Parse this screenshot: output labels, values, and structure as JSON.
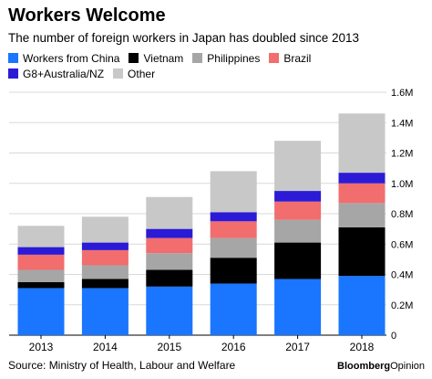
{
  "chart_data": {
    "type": "bar",
    "stacked": true,
    "title": "Workers Welcome",
    "subtitle": "The number of foreign workers in Japan has doubled since 2013",
    "categories": [
      "2013",
      "2014",
      "2015",
      "2016",
      "2017",
      "2018"
    ],
    "series": [
      {
        "name": "Workers from China",
        "color": "#1a75ff",
        "values": [
          0.31,
          0.31,
          0.32,
          0.34,
          0.37,
          0.39
        ]
      },
      {
        "name": "Vietnam",
        "color": "#000000",
        "values": [
          0.04,
          0.06,
          0.11,
          0.17,
          0.24,
          0.32
        ]
      },
      {
        "name": "Philippines",
        "color": "#a6a6a6",
        "values": [
          0.08,
          0.09,
          0.11,
          0.13,
          0.15,
          0.16
        ]
      },
      {
        "name": "Brazil",
        "color": "#f26d6d",
        "values": [
          0.1,
          0.1,
          0.1,
          0.11,
          0.12,
          0.13
        ]
      },
      {
        "name": "G8+Australia/NZ",
        "color": "#2b1bd6",
        "values": [
          0.05,
          0.05,
          0.06,
          0.06,
          0.07,
          0.07
        ]
      },
      {
        "name": "Other",
        "color": "#c8c8c8",
        "values": [
          0.14,
          0.17,
          0.21,
          0.27,
          0.33,
          0.39
        ]
      }
    ],
    "yticks": [
      0,
      0.2,
      0.4,
      0.6,
      0.8,
      1.0,
      1.2,
      1.4,
      1.6
    ],
    "ytick_labels": [
      "0",
      "0.2M",
      "0.4M",
      "0.6M",
      "0.8M",
      "1.0M",
      "1.2M",
      "1.4M",
      "1.6M"
    ],
    "ylim": [
      0,
      1.6
    ],
    "grid": true,
    "legend_position": "top",
    "xlabel": "",
    "ylabel": ""
  },
  "source": "Source: Ministry of Health, Labour and Welfare",
  "brand": {
    "part1": "Bloomberg",
    "part2": "Opinion"
  }
}
